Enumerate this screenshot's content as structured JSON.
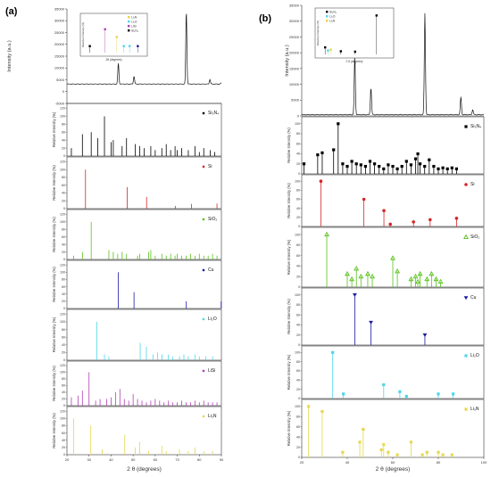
{
  "panel_labels": [
    "(a)",
    "(b)"
  ],
  "colors": {
    "Si3N4": "#000000",
    "Si": "#d62728",
    "SiO2": "#58c21b",
    "Cu": "#1a1aa6",
    "Li2O": "#4cd7e8",
    "LiSi": "#b23fb5",
    "Li3N": "#e6d64a",
    "ink": "#333333"
  },
  "chart_data": [
    {
      "panel": "(a)",
      "type": "line",
      "ylabel": "Intensity (a.u.)",
      "ylim": [
        -5000,
        35000
      ],
      "yticks": [
        "35000",
        "30000",
        "25000",
        "20000",
        "15000",
        "10000",
        "5000",
        "0",
        "-5000"
      ],
      "xlim": [
        20,
        90
      ],
      "series": [
        {
          "kind": "xrd-pattern",
          "baseline": 3200,
          "peaks": [
            {
              "x": 43.3,
              "y": 12000
            },
            {
              "x": 50.4,
              "y": 6500
            },
            {
              "x": 74.1,
              "y": 34000
            },
            {
              "x": 84.8,
              "y": 5200
            },
            {
              "x": 89.9,
              "y": 3600
            }
          ]
        }
      ],
      "inset": {
        "xlabel": "2θ (degrees)",
        "ylabel": "Relative Intensity (%)",
        "legend": [
          "Li₂N",
          "Li₂O",
          "LiSi",
          "Si₃N₄"
        ],
        "points": [
          {
            "x": 22,
            "y": 20,
            "color_key": "Si3N4"
          },
          {
            "x": 35,
            "y": 72,
            "color_key": "LiSi"
          },
          {
            "x": 45,
            "y": 48,
            "color_key": "Li3N"
          },
          {
            "x": 51,
            "y": 20,
            "color_key": "Li2O"
          },
          {
            "x": 56,
            "y": 20,
            "color_key": "Li2O"
          },
          {
            "x": 63,
            "y": 20,
            "color_key": "Cu"
          }
        ]
      }
    },
    {
      "panel": "(a)",
      "type": "bar",
      "phase": "Si₃N₄",
      "color_key": "Si3N4",
      "ylabel": "Relative Intensity (%)",
      "xlim": [
        20,
        90
      ],
      "x": [
        22,
        27,
        31,
        34,
        37,
        40,
        41,
        45,
        47,
        51,
        53,
        55,
        58,
        60,
        63,
        65,
        67,
        69,
        70,
        72,
        75,
        78,
        80,
        82,
        85,
        87
      ],
      "values": [
        20,
        55,
        60,
        45,
        100,
        35,
        40,
        25,
        45,
        30,
        25,
        20,
        25,
        15,
        20,
        30,
        15,
        25,
        15,
        20,
        15,
        25,
        10,
        20,
        15,
        10
      ]
    },
    {
      "panel": "(a)",
      "type": "bar",
      "phase": "Si",
      "color_key": "Si",
      "ylabel": "Relative Intensity (%)",
      "xlim": [
        20,
        90
      ],
      "x": [
        28.4,
        47.3,
        56.1,
        69.1,
        76.4,
        88.0
      ],
      "values": [
        100,
        55,
        30,
        7,
        12,
        13
      ]
    },
    {
      "panel": "(a)",
      "type": "bar",
      "phase": "SiO₂",
      "color_key": "SiO2",
      "ylabel": "Relative Intensity (%)",
      "xlim": [
        20,
        90
      ],
      "x": [
        23,
        27,
        31,
        39,
        41,
        43,
        45,
        47,
        52,
        53,
        57,
        58,
        60,
        63,
        65,
        67,
        69,
        70,
        72,
        74,
        76,
        78,
        80,
        82,
        84,
        86,
        88
      ],
      "values": [
        10,
        20,
        100,
        25,
        20,
        15,
        20,
        15,
        10,
        15,
        20,
        25,
        10,
        15,
        10,
        15,
        10,
        15,
        10,
        10,
        15,
        10,
        15,
        10,
        10,
        15,
        10
      ]
    },
    {
      "panel": "(a)",
      "type": "bar",
      "phase": "Cu",
      "color_key": "Cu",
      "ylabel": "Relative Intensity (%)",
      "xlim": [
        20,
        90
      ],
      "x": [
        43.3,
        50.4,
        74.1,
        89.9
      ],
      "values": [
        100,
        45,
        20,
        20
      ]
    },
    {
      "panel": "(a)",
      "type": "bar",
      "phase": "Li₂O",
      "color_key": "Li2O",
      "ylabel": "Relative Intensity (%)",
      "xlim": [
        20,
        90
      ],
      "x": [
        33.6,
        37,
        39,
        53.2,
        56,
        59,
        61,
        63.1,
        66,
        68,
        71,
        73,
        75,
        78,
        80,
        83,
        86
      ],
      "values": [
        100,
        15,
        10,
        45,
        35,
        15,
        20,
        15,
        15,
        10,
        10,
        15,
        10,
        15,
        10,
        10,
        10
      ]
    },
    {
      "panel": "(a)",
      "type": "bar",
      "phase": "LiSi",
      "color_key": "LiSi",
      "ylabel": "Relative Intensity (%)",
      "xlim": [
        20,
        90
      ],
      "x": [
        22,
        25,
        27,
        30,
        33,
        35,
        38,
        40,
        42,
        44,
        46,
        48,
        50,
        52,
        54,
        56,
        58,
        60,
        62,
        64,
        66,
        68,
        70,
        72,
        74,
        76,
        78,
        80,
        82,
        84,
        86,
        88
      ],
      "values": [
        25,
        30,
        45,
        100,
        15,
        20,
        20,
        25,
        40,
        50,
        20,
        15,
        35,
        20,
        15,
        10,
        15,
        20,
        15,
        10,
        15,
        10,
        10,
        15,
        10,
        10,
        15,
        10,
        15,
        10,
        10,
        10
      ]
    },
    {
      "panel": "(a)",
      "type": "bar",
      "phase": "Li₃N",
      "color_key": "Li3N",
      "ylabel": "Relative Intensity (%)",
      "xlim": [
        20,
        90
      ],
      "xlabel": "2 θ (degrees)",
      "xticks": [
        "20",
        "30",
        "40",
        "50",
        "60",
        "70",
        "80",
        "90"
      ],
      "x": [
        23,
        30.8,
        36,
        46.2,
        51,
        53,
        57,
        63,
        65,
        71,
        75,
        78,
        82,
        86
      ],
      "values": [
        100,
        80,
        15,
        55,
        20,
        35,
        10,
        25,
        10,
        15,
        10,
        20,
        10,
        10
      ]
    },
    {
      "panel": "(b)",
      "type": "line",
      "ylabel": "Intensity (a.u.)",
      "ylim": [
        0,
        35000
      ],
      "yticks": [
        "35000",
        "30000",
        "25000",
        "20000",
        "15000",
        "10000",
        "5000",
        "0"
      ],
      "xlim": [
        20,
        100
      ],
      "series": [
        {
          "kind": "xrd-pattern",
          "baseline": 400,
          "peaks": [
            {
              "x": 43.3,
              "y": 19000
            },
            {
              "x": 50.4,
              "y": 9000
            },
            {
              "x": 74.1,
              "y": 32500
            },
            {
              "x": 89.9,
              "y": 6000
            },
            {
              "x": 95.1,
              "y": 2000
            }
          ]
        }
      ],
      "inset": {
        "xlabel": "2 θ (degrees)",
        "ylabel": "Relative Intensity (%)",
        "legend": [
          "Si₃N₄",
          "Li₂O",
          "Li₃N"
        ],
        "points": [
          {
            "x": 22,
            "y": 18,
            "color_key": "Si3N4"
          },
          {
            "x": 24,
            "y": 10,
            "color_key": "Li2O"
          },
          {
            "x": 26,
            "y": 12,
            "color_key": "Li3N"
          },
          {
            "x": 33,
            "y": 8,
            "color_key": "Si3N4"
          },
          {
            "x": 43,
            "y": 7,
            "color_key": "Si3N4"
          },
          {
            "x": 58,
            "y": 100,
            "color_key": "Si3N4"
          }
        ]
      }
    },
    {
      "panel": "(b)",
      "type": "bar",
      "phase": "Si₃N₄",
      "color_key": "Si3N4",
      "ylabel": "Relative Intensity (%)",
      "xlim": [
        20,
        100
      ],
      "x": [
        21,
        27,
        29,
        34,
        36,
        38,
        40,
        42,
        44,
        46,
        48,
        50,
        52,
        54,
        56,
        58,
        60,
        62,
        64,
        66,
        68,
        70,
        71,
        72,
        74,
        76,
        78,
        80,
        82,
        84,
        86,
        88
      ],
      "values": [
        20,
        38,
        42,
        48,
        100,
        20,
        15,
        25,
        20,
        18,
        15,
        25,
        20,
        15,
        10,
        18,
        15,
        10,
        15,
        25,
        18,
        30,
        40,
        20,
        15,
        28,
        15,
        10,
        12,
        10,
        12,
        10
      ]
    },
    {
      "panel": "(b)",
      "type": "bar",
      "phase": "Si",
      "color_key": "Si",
      "ylabel": "Relative Intensity (%)",
      "xlim": [
        20,
        100
      ],
      "x": [
        28.4,
        47.3,
        56.1,
        58.9,
        69.1,
        76.4,
        88.0
      ],
      "values": [
        100,
        60,
        35,
        5,
        10,
        15,
        18
      ]
    },
    {
      "panel": "(b)",
      "type": "bar",
      "phase": "SiO₂",
      "color_key": "SiO2",
      "ylabel": "Relative Intensity (%)",
      "xlim": [
        20,
        100
      ],
      "x": [
        31,
        40,
        42,
        44,
        46,
        49,
        51,
        60,
        62,
        68,
        70,
        71,
        72,
        75,
        77,
        79,
        81
      ],
      "values": [
        100,
        25,
        15,
        35,
        20,
        25,
        20,
        55,
        30,
        15,
        20,
        10,
        25,
        15,
        25,
        15,
        10
      ]
    },
    {
      "panel": "(b)",
      "type": "bar",
      "phase": "Cu",
      "color_key": "Cu",
      "ylabel": "Relative Intensity (%)",
      "xlim": [
        20,
        100
      ],
      "x": [
        43.3,
        50.4,
        74.1
      ],
      "values": [
        100,
        45,
        20
      ]
    },
    {
      "panel": "(b)",
      "type": "bar",
      "phase": "Li₂O",
      "color_key": "Li2O",
      "ylabel": "Relative Intensity (%)",
      "xlim": [
        20,
        100
      ],
      "x": [
        33.6,
        38.3,
        56.0,
        63.1,
        66.0,
        80.0,
        86.5
      ],
      "values": [
        100,
        10,
        30,
        15,
        5,
        10,
        10
      ]
    },
    {
      "panel": "(b)",
      "type": "bar",
      "phase": "Li₃N",
      "color_key": "Li3N",
      "ylabel": "Relative Intensity (%)",
      "xlim": [
        20,
        100
      ],
      "xlabel": "2 θ (degrees)",
      "xticks": [
        "20",
        "40",
        "60",
        "80",
        "100"
      ],
      "x": [
        23,
        29,
        38,
        45.5,
        47,
        55,
        56,
        58,
        62,
        68,
        73,
        75,
        80,
        82,
        86
      ],
      "values": [
        100,
        90,
        10,
        30,
        55,
        15,
        25,
        10,
        5,
        30,
        5,
        10,
        10,
        5,
        5
      ]
    }
  ]
}
